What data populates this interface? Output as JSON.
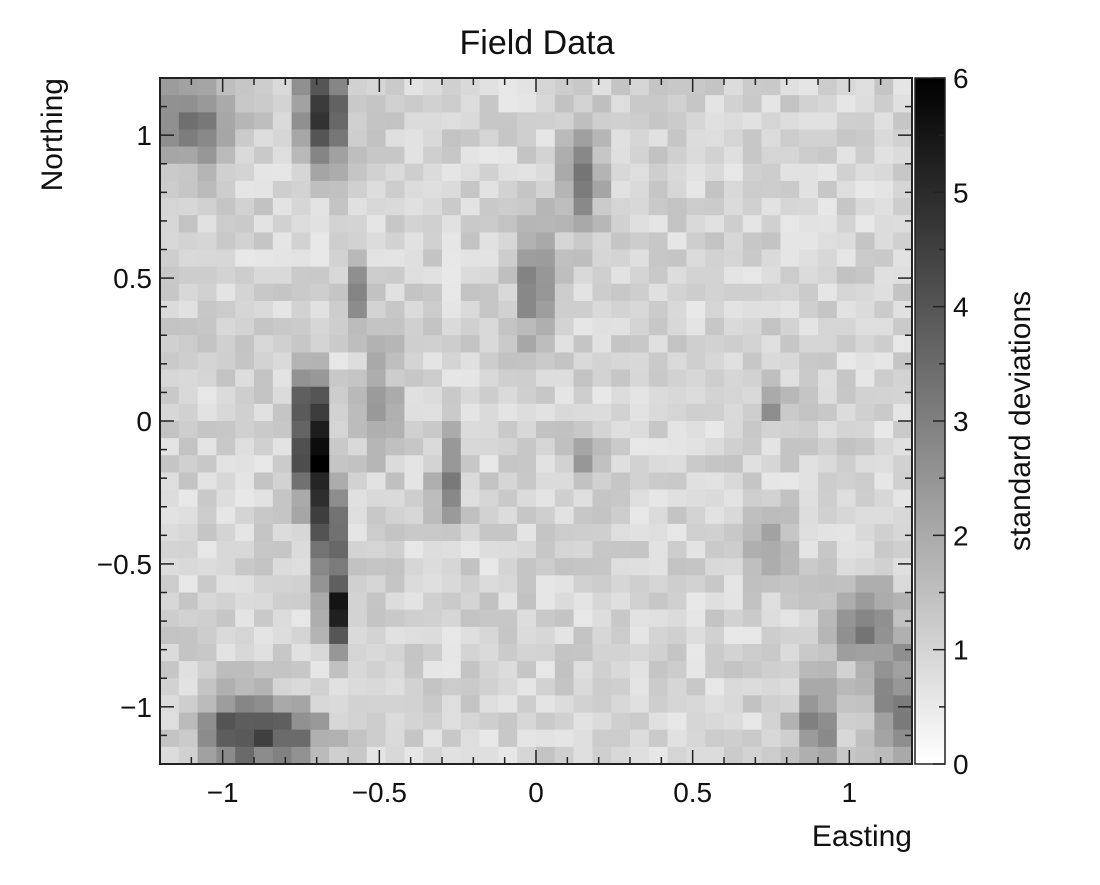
{
  "chart_data": {
    "type": "heatmap",
    "title": "Field Data",
    "xlabel": "Easting",
    "ylabel": "Northing",
    "xlim": [
      -1.2,
      1.2
    ],
    "ylim": [
      -1.2,
      1.2
    ],
    "xticks": [
      {
        "value": -1,
        "label": "−1"
      },
      {
        "value": -0.5,
        "label": "−0.5"
      },
      {
        "value": 0,
        "label": "0"
      },
      {
        "value": 0.5,
        "label": "0.5"
      },
      {
        "value": 1,
        "label": "1"
      }
    ],
    "yticks": [
      {
        "value": 1,
        "label": "1"
      },
      {
        "value": 0.5,
        "label": "0.5"
      },
      {
        "value": 0,
        "label": "0"
      },
      {
        "value": -0.5,
        "label": "−0.5"
      },
      {
        "value": -1,
        "label": "−1"
      }
    ],
    "colorbar": {
      "label": "standard deviations",
      "min": 0,
      "max": 6,
      "ticks": [
        {
          "value": 0,
          "label": "0"
        },
        {
          "value": 1,
          "label": "1"
        },
        {
          "value": 2,
          "label": "2"
        },
        {
          "value": 3,
          "label": "3"
        },
        {
          "value": 4,
          "label": "4"
        },
        {
          "value": 5,
          "label": "5"
        },
        {
          "value": 6,
          "label": "6"
        }
      ],
      "colormap": "white-to-black"
    },
    "grid": false,
    "cell_size": 0.06,
    "hotspots": [
      {
        "x": -0.71,
        "y": -0.12,
        "sx": 0.035,
        "sy": 0.12,
        "amp": 5.7
      },
      {
        "x": -0.66,
        "y": -0.42,
        "sx": 0.03,
        "sy": 0.14,
        "amp": 4.3
      },
      {
        "x": -0.64,
        "y": -0.68,
        "sx": 0.025,
        "sy": 0.08,
        "amp": 4.6
      },
      {
        "x": -0.72,
        "y": 0.08,
        "sx": 0.03,
        "sy": 0.07,
        "amp": 3.0
      },
      {
        "x": -0.68,
        "y": 1.08,
        "sx": 0.05,
        "sy": 0.12,
        "amp": 4.2
      },
      {
        "x": -0.95,
        "y": -1.08,
        "sx": 0.08,
        "sy": 0.09,
        "amp": 3.2
      },
      {
        "x": -0.78,
        "y": -1.1,
        "sx": 0.08,
        "sy": 0.07,
        "amp": 2.4
      },
      {
        "x": -1.1,
        "y": 1.05,
        "sx": 0.1,
        "sy": 0.12,
        "amp": 2.0
      },
      {
        "x": -0.58,
        "y": 0.45,
        "sx": 0.03,
        "sy": 0.08,
        "amp": 2.0
      },
      {
        "x": 0.0,
        "y": 0.5,
        "sx": 0.04,
        "sy": 0.16,
        "amp": 2.4
      },
      {
        "x": 0.15,
        "y": 0.85,
        "sx": 0.04,
        "sy": 0.14,
        "amp": 2.4
      },
      {
        "x": -0.28,
        "y": -0.2,
        "sx": 0.03,
        "sy": 0.12,
        "amp": 2.0
      },
      {
        "x": 0.15,
        "y": -0.12,
        "sx": 0.04,
        "sy": 0.06,
        "amp": 1.6
      },
      {
        "x": 0.75,
        "y": -0.45,
        "sx": 0.05,
        "sy": 0.08,
        "amp": 1.4
      },
      {
        "x": 1.05,
        "y": -0.7,
        "sx": 0.08,
        "sy": 0.1,
        "amp": 2.0
      },
      {
        "x": 0.9,
        "y": -1.05,
        "sx": 0.05,
        "sy": 0.1,
        "amp": 2.0
      },
      {
        "x": 1.15,
        "y": -1.0,
        "sx": 0.06,
        "sy": 0.15,
        "amp": 2.2
      },
      {
        "x": 0.75,
        "y": 0.05,
        "sx": 0.04,
        "sy": 0.05,
        "amp": 1.4
      },
      {
        "x": -0.5,
        "y": 0.1,
        "sx": 0.04,
        "sy": 0.15,
        "amp": 1.2
      }
    ],
    "background_level": 0.8,
    "noise_amplitude": 0.9
  }
}
